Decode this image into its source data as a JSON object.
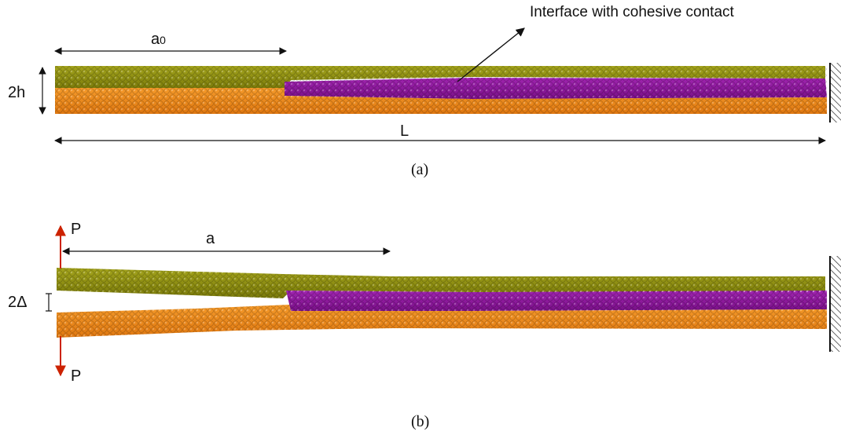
{
  "colors": {
    "upper_arm": "#8c8c10",
    "lower_arm": "#f08a1a",
    "interface_layer": "#8e189a",
    "load_arrow": "#cc2200",
    "dimension_line": "#111111"
  },
  "panel_a": {
    "annotation": "Interface with cohesive contact",
    "crack_length_label": "a",
    "crack_length_subscript": "0",
    "thickness_label": "2h",
    "length_label": "L",
    "caption": "(a)"
  },
  "panel_b": {
    "load_top_label": "P",
    "load_bottom_label": "P",
    "crack_length_label": "a",
    "opening_label": "2Δ",
    "caption": "(b)"
  }
}
